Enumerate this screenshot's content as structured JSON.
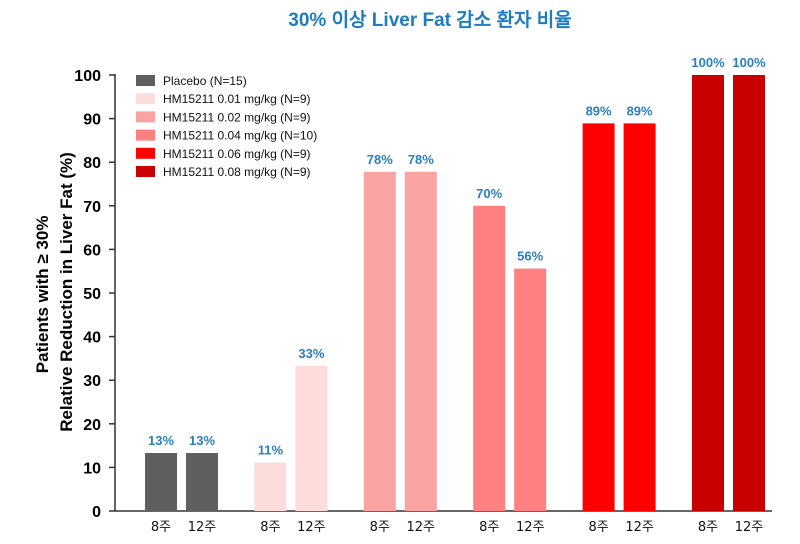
{
  "chart_data": {
    "type": "bar",
    "title": "30% 이상 Liver Fat 감소 환자 비율",
    "ylabel_lines": [
      "Patients with ≥ 30%",
      "Relative Reduction in Liver Fat (%)"
    ],
    "ylim": [
      0,
      100
    ],
    "yticks": [
      0,
      10,
      20,
      30,
      40,
      50,
      60,
      70,
      80,
      90,
      100
    ],
    "grid": false,
    "legend_position": "top-left",
    "groups": [
      {
        "name": "Placebo (N=15)",
        "color": "#5f5f5f",
        "categories": [
          "8주",
          "12주"
        ],
        "values": [
          13.3,
          13.3
        ],
        "labels": [
          "13%",
          "13%"
        ]
      },
      {
        "name": "HM15211 0.01 mg/kg (N=9)",
        "color": "#fddcdc",
        "categories": [
          "8주",
          "12주"
        ],
        "values": [
          11.1,
          33.3
        ],
        "labels": [
          "11%",
          "33%"
        ]
      },
      {
        "name": "HM15211 0.02 mg/kg (N=9)",
        "color": "#f9a3a3",
        "categories": [
          "8주",
          "12주"
        ],
        "values": [
          77.8,
          77.8
        ],
        "labels": [
          "78%",
          "78%"
        ]
      },
      {
        "name": "HM15211 0.04 mg/kg (N=10)",
        "color": "#ff8080",
        "categories": [
          "8주",
          "12주"
        ],
        "values": [
          70,
          55.6
        ],
        "labels": [
          "70%",
          "56%"
        ]
      },
      {
        "name": "HM15211 0.06 mg/kg (N=9)",
        "color": "#ff0000",
        "categories": [
          "8주",
          "12주"
        ],
        "values": [
          88.9,
          88.9
        ],
        "labels": [
          "89%",
          "89%"
        ]
      },
      {
        "name": "HM15211 0.08 mg/kg (N=9)",
        "color": "#c80000",
        "categories": [
          "8주",
          "12주"
        ],
        "values": [
          100,
          100
        ],
        "labels": [
          "100%",
          "100%"
        ]
      }
    ]
  }
}
